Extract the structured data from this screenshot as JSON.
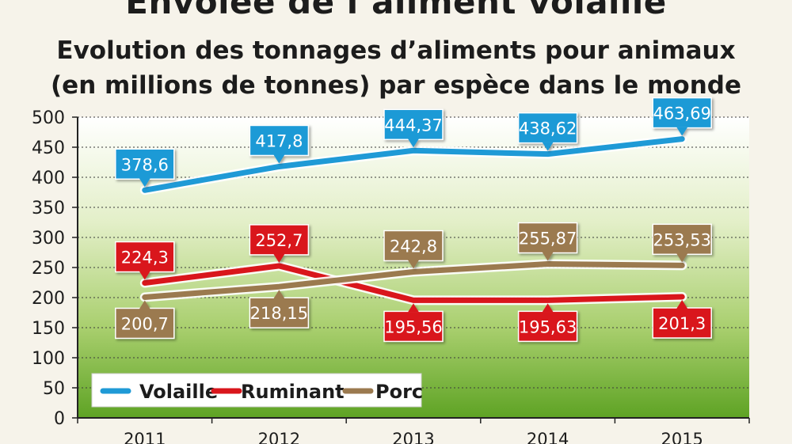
{
  "chart_data": {
    "type": "line",
    "title": "Envolée de l’aliment volaille",
    "subtitle_line1": "Evolution des tonnages d’aliments pour animaux",
    "subtitle_line2": "(en millions de tonnes) par espèce dans le monde",
    "xlabel": "",
    "ylabel": "",
    "x": [
      "2011",
      "2012",
      "2013",
      "2014",
      "2015"
    ],
    "ylim": [
      0,
      500
    ],
    "yticks": [
      0,
      50,
      100,
      150,
      200,
      250,
      300,
      350,
      400,
      450,
      500
    ],
    "grid": "horizontal",
    "legend_position": "bottom-left",
    "series": [
      {
        "name": "Volaille",
        "color": "#1f9ad6",
        "values": [
          378.6,
          417.8,
          444.37,
          438.62,
          463.69
        ],
        "labels": [
          "378,6",
          "417,8",
          "444,37",
          "438,62",
          "463,69"
        ],
        "label_position": "above"
      },
      {
        "name": "Ruminant",
        "color": "#d9161c",
        "values": [
          224.3,
          252.7,
          195.56,
          195.63,
          201.3
        ],
        "labels": [
          "224,3",
          "252,7",
          "195,56",
          "195,63",
          "201,3"
        ],
        "label_position": [
          "above",
          "above",
          "below",
          "below",
          "below"
        ]
      },
      {
        "name": "Porc",
        "color": "#9b7a4f",
        "values": [
          200.7,
          218.15,
          242.8,
          255.87,
          253.53
        ],
        "labels": [
          "200,7",
          "218,15",
          "242,8",
          "255,87",
          "253,53"
        ],
        "label_position": [
          "below",
          "below",
          "above",
          "above",
          "above"
        ]
      }
    ]
  }
}
